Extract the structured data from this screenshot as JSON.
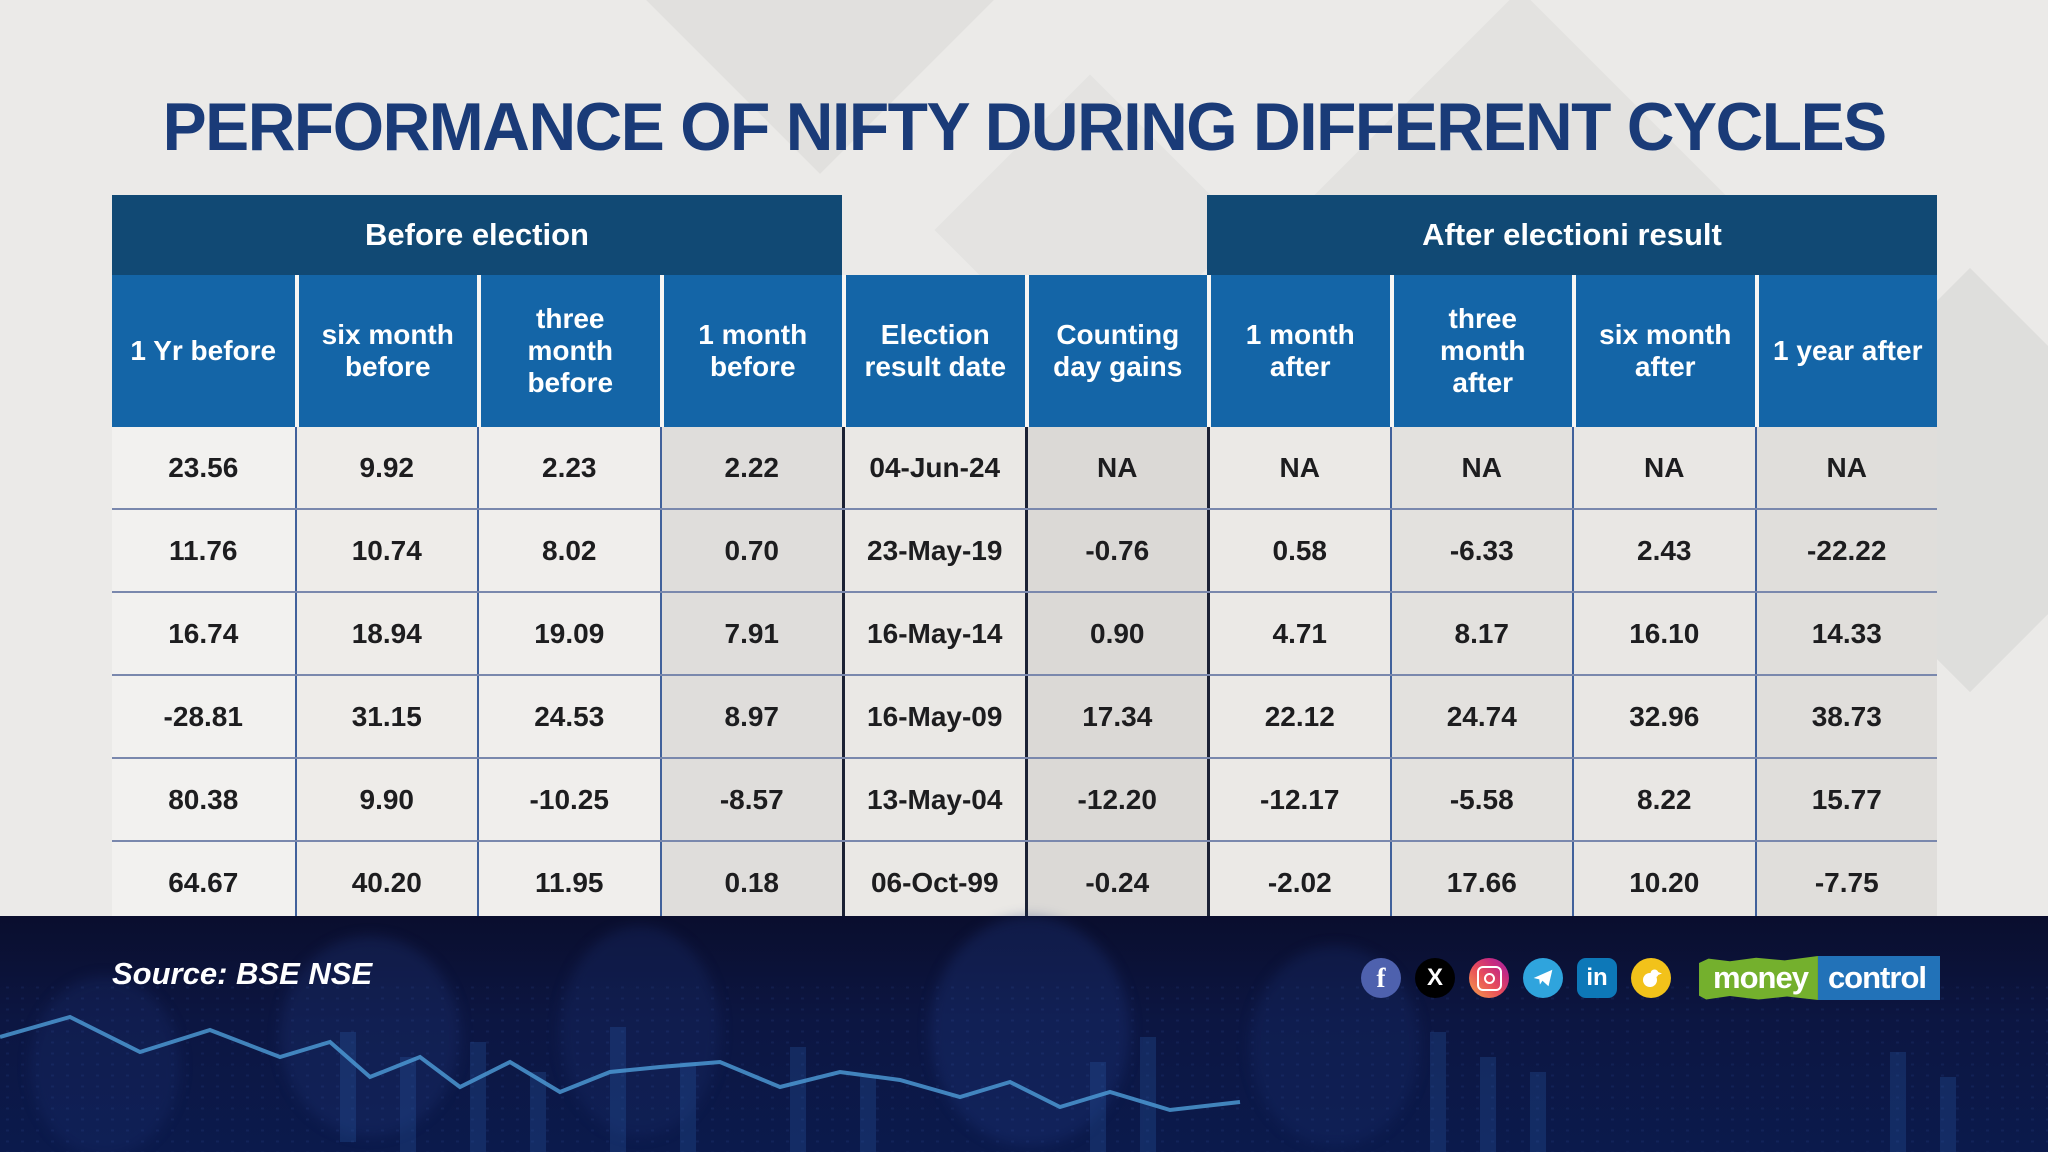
{
  "title": "PERFORMANCE OF NIFTY DURING DIFFERENT CYCLES",
  "chart_data": {
    "type": "table",
    "group_headers": [
      {
        "label": "Before election",
        "spans_columns": [
          1,
          4
        ]
      },
      {
        "label": "After electioni result",
        "spans_columns": [
          7,
          10
        ]
      }
    ],
    "columns": [
      "1 Yr before",
      "six month before",
      "three month before",
      "1 month before",
      "Election result date",
      "Counting day gains",
      "1 month after",
      "three month after",
      "six month after",
      "1 year after"
    ],
    "rows": [
      [
        "23.56",
        "9.92",
        "2.23",
        "2.22",
        "04-Jun-24",
        "NA",
        "NA",
        "NA",
        "NA",
        "NA"
      ],
      [
        "11.76",
        "10.74",
        "8.02",
        "0.70",
        "23-May-19",
        "-0.76",
        "0.58",
        "-6.33",
        "2.43",
        "-22.22"
      ],
      [
        "16.74",
        "18.94",
        "19.09",
        "7.91",
        "16-May-14",
        "0.90",
        "4.71",
        "8.17",
        "16.10",
        "14.33"
      ],
      [
        "-28.81",
        "31.15",
        "24.53",
        "8.97",
        "16-May-09",
        "17.34",
        "22.12",
        "24.74",
        "32.96",
        "38.73"
      ],
      [
        "80.38",
        "9.90",
        "-10.25",
        "-8.57",
        "13-May-04",
        "-12.20",
        "-12.17",
        "-5.58",
        "8.22",
        "15.77"
      ],
      [
        "64.67",
        "40.20",
        "11.95",
        "0.18",
        "06-Oct-99",
        "-0.24",
        "-2.02",
        "17.66",
        "10.20",
        "-7.75"
      ]
    ]
  },
  "footer": {
    "source": "Source: BSE NSE",
    "social_icons": [
      "facebook-icon",
      "x-icon",
      "instagram-icon",
      "telegram-icon",
      "linkedin-icon",
      "koo-icon"
    ],
    "facebook_glyph": "f",
    "x_glyph": "X",
    "linkedin_glyph": "in",
    "brand": {
      "green_part": "money",
      "blue_part": "control"
    }
  },
  "colors": {
    "title_text": "#1a3b78",
    "group_banner": "#114974",
    "column_header": "#1465a7",
    "footer_background": "#0c1642",
    "brand_green": "#74b02d",
    "brand_blue": "#2272b8"
  }
}
